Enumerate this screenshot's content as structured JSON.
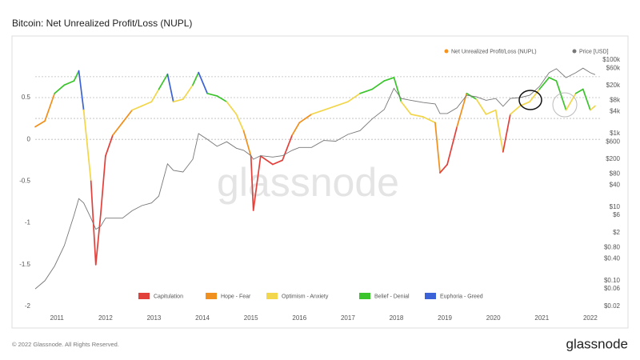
{
  "chart_data": {
    "type": "line",
    "title": "Bitcoin: Net Unrealized Profit/Loss (NUPL)",
    "watermark": "glassnode",
    "x": [
      2010.55,
      2010.75,
      2010.95,
      2011.15,
      2011.35,
      2011.45,
      2011.55,
      2011.7,
      2011.8,
      2011.9,
      2012.0,
      2012.15,
      2012.35,
      2012.55,
      2012.75,
      2012.95,
      2013.1,
      2013.28,
      2013.4,
      2013.6,
      2013.8,
      2013.92,
      2014.1,
      2014.3,
      2014.5,
      2014.7,
      2014.85,
      2015.0,
      2015.05,
      2015.2,
      2015.45,
      2015.65,
      2015.85,
      2016.0,
      2016.25,
      2016.5,
      2016.75,
      2017.0,
      2017.25,
      2017.5,
      2017.75,
      2017.95,
      2018.1,
      2018.3,
      2018.55,
      2018.8,
      2018.9,
      2019.05,
      2019.25,
      2019.45,
      2019.65,
      2019.85,
      2020.05,
      2020.2,
      2020.35,
      2020.55,
      2020.75,
      2020.95,
      2021.15,
      2021.3,
      2021.5,
      2021.7,
      2021.85,
      2022.0,
      2022.1
    ],
    "xlim": [
      2010.55,
      2022.2
    ],
    "xticks": [
      2011,
      2012,
      2013,
      2014,
      2015,
      2016,
      2017,
      2018,
      2019,
      2020,
      2021,
      2022
    ],
    "ylim": [
      -2,
      0.95
    ],
    "yticks": [
      0.5,
      0,
      -0.5,
      -1,
      -1.5,
      -2
    ],
    "y2lim": [
      0.02,
      100000
    ],
    "y2log": true,
    "y2ticks": [
      {
        "value": 100000,
        "label": "$100k"
      },
      {
        "value": 60000,
        "label": "$60k"
      },
      {
        "value": 20000,
        "label": "$20k"
      },
      {
        "value": 8000,
        "label": "$8k"
      },
      {
        "value": 4000,
        "label": "$4k"
      },
      {
        "value": 1000,
        "label": "$1k"
      },
      {
        "value": 600,
        "label": "$600"
      },
      {
        "value": 200,
        "label": "$200"
      },
      {
        "value": 80,
        "label": "$80"
      },
      {
        "value": 40,
        "label": "$40"
      },
      {
        "value": 10,
        "label": "$10"
      },
      {
        "value": 6,
        "label": "$6"
      },
      {
        "value": 2,
        "label": "$2"
      },
      {
        "value": 0.8,
        "label": "$0.80"
      },
      {
        "value": 0.4,
        "label": "$0.40"
      },
      {
        "value": 0.1,
        "label": "$0.10"
      },
      {
        "value": 0.06,
        "label": "$0.06"
      },
      {
        "value": 0.02,
        "label": "$0.02"
      }
    ],
    "reference_lines": [
      0.75,
      0.5,
      0.25,
      0
    ],
    "zones": [
      {
        "name": "Capitulation",
        "color": "#e2403a"
      },
      {
        "name": "Hope - Fear",
        "color": "#f0901e"
      },
      {
        "name": "Optimism - Anxiety",
        "color": "#f2d64b"
      },
      {
        "name": "Belief - Denial",
        "color": "#3bc42c"
      },
      {
        "name": "Euphoria - Greed",
        "color": "#3b62d6"
      }
    ],
    "series": [
      {
        "name": "Net Unrealized Profit/Loss (NUPL)",
        "color": "#f7931a",
        "values": [
          0.15,
          0.22,
          0.55,
          0.65,
          0.7,
          0.82,
          0.35,
          -0.5,
          -1.5,
          -0.9,
          -0.2,
          0.05,
          0.2,
          0.35,
          0.4,
          0.45,
          0.6,
          0.78,
          0.45,
          0.48,
          0.65,
          0.8,
          0.55,
          0.52,
          0.45,
          0.3,
          0.1,
          -0.2,
          -0.85,
          -0.2,
          -0.3,
          -0.25,
          0.05,
          0.2,
          0.3,
          0.35,
          0.4,
          0.45,
          0.55,
          0.6,
          0.7,
          0.74,
          0.45,
          0.3,
          0.27,
          0.2,
          -0.4,
          -0.3,
          0.15,
          0.55,
          0.48,
          0.3,
          0.35,
          -0.15,
          0.3,
          0.4,
          0.45,
          0.6,
          0.74,
          0.7,
          0.35,
          0.55,
          0.6,
          0.35,
          0.4
        ],
        "point_colors": [
          "#f0901e",
          "#f0901e",
          "#3bc42c",
          "#3bc42c",
          "#3bc42c",
          "#3b62d6",
          "#f2d64b",
          "#e2403a",
          "#e2403a",
          "#e2403a",
          "#e2403a",
          "#f0901e",
          "#f0901e",
          "#f2d64b",
          "#f2d64b",
          "#f2d64b",
          "#3bc42c",
          "#3b62d6",
          "#f2d64b",
          "#f2d64b",
          "#3bc42c",
          "#3b62d6",
          "#3bc42c",
          "#3bc42c",
          "#f2d64b",
          "#f2d64b",
          "#f0901e",
          "#e2403a",
          "#e2403a",
          "#e2403a",
          "#e2403a",
          "#e2403a",
          "#f0901e",
          "#f0901e",
          "#f2d64b",
          "#f2d64b",
          "#f2d64b",
          "#f2d64b",
          "#3bc42c",
          "#3bc42c",
          "#3bc42c",
          "#3bc42c",
          "#f2d64b",
          "#f2d64b",
          "#f2d64b",
          "#f0901e",
          "#e2403a",
          "#e2403a",
          "#f0901e",
          "#3bc42c",
          "#f2d64b",
          "#f2d64b",
          "#f2d64b",
          "#e2403a",
          "#f2d64b",
          "#f2d64b",
          "#f2d64b",
          "#3bc42c",
          "#3bc42c",
          "#3bc42c",
          "#f2d64b",
          "#3bc42c",
          "#3bc42c",
          "#f2d64b",
          "#f2d64b"
        ]
      },
      {
        "name": "Price [USD]",
        "color": "#777777",
        "axis": "y2",
        "values": [
          0.06,
          0.1,
          0.25,
          0.9,
          6,
          17,
          13,
          5,
          2.5,
          3,
          5,
          5,
          5,
          8,
          11,
          13,
          20,
          150,
          100,
          90,
          200,
          1000,
          700,
          450,
          600,
          400,
          350,
          250,
          200,
          250,
          230,
          250,
          350,
          420,
          420,
          650,
          620,
          950,
          1200,
          2500,
          4500,
          17000,
          9000,
          8000,
          7000,
          6400,
          3500,
          3500,
          5000,
          11000,
          10000,
          8000,
          9000,
          5500,
          9000,
          9500,
          11000,
          19000,
          45000,
          58000,
          33000,
          45000,
          60000,
          45000,
          40000
        ]
      }
    ]
  },
  "footer": {
    "copyright": "© 2022 Glassnode. All Rights Reserved.",
    "logo": "glassnode"
  }
}
